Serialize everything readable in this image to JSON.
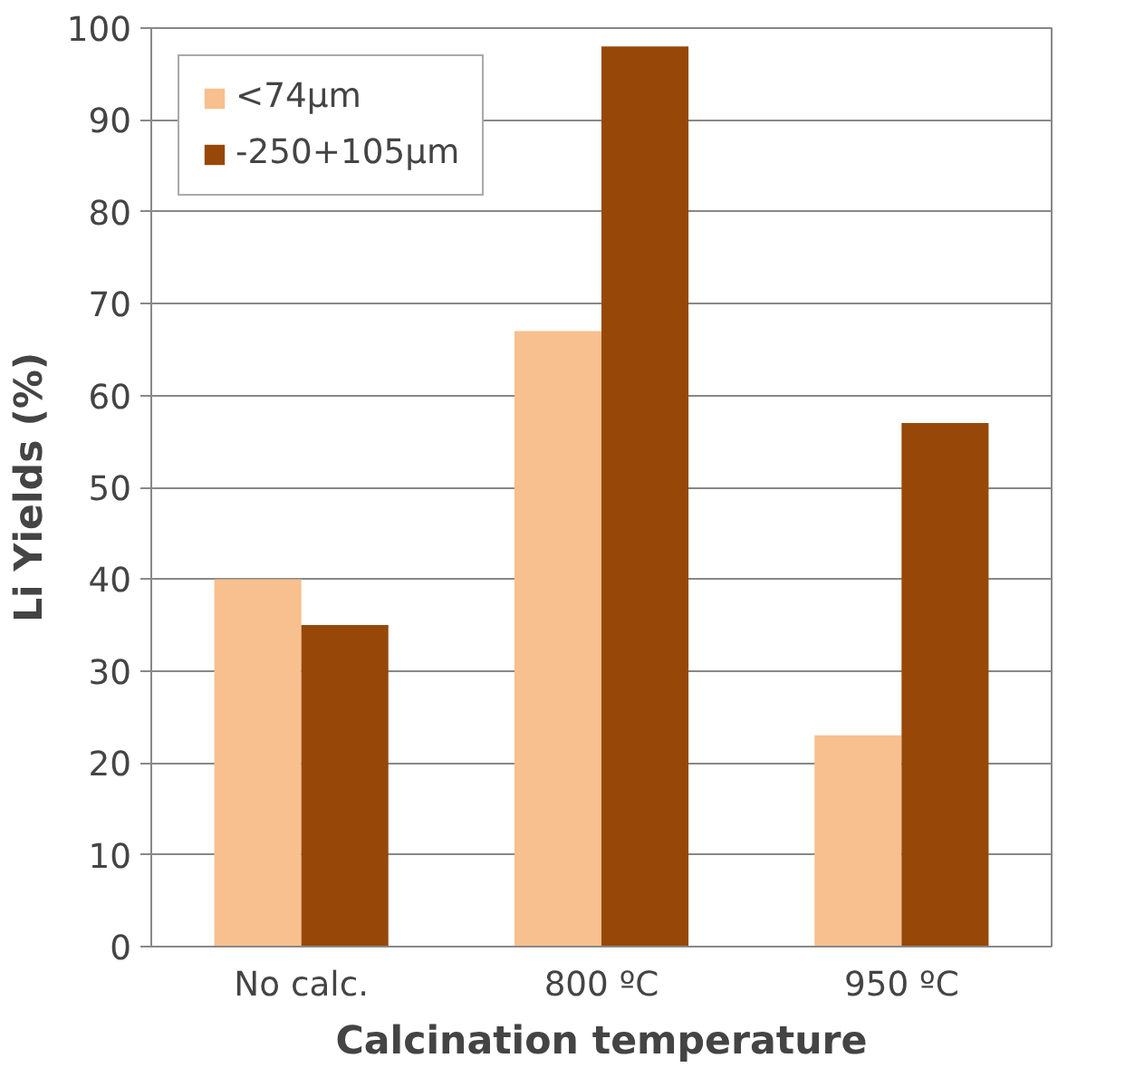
{
  "chart_data": {
    "type": "bar",
    "xlabel": "Calcination temperature",
    "ylabel": "Li Yields (%)",
    "categories": [
      "No calc.",
      "800 ºC",
      "950 ºC"
    ],
    "series": [
      {
        "name": "<74µm",
        "color": "#f8bf8f",
        "values": [
          40,
          67,
          23
        ]
      },
      {
        "name": "-250+105µm",
        "color": "#974808",
        "values": [
          35,
          98,
          57
        ]
      }
    ],
    "ylim": [
      0,
      100
    ],
    "yticks": [
      0,
      10,
      20,
      30,
      40,
      50,
      60,
      70,
      80,
      90,
      100
    ],
    "grid": "y",
    "legend": "top left"
  }
}
